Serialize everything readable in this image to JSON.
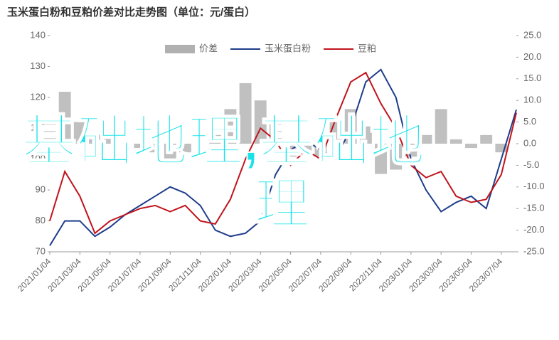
{
  "chart_data": {
    "type": "line",
    "title": "玉米蛋白粉和豆粕价差对比走势图（单位：元/蛋白）",
    "categories": [
      "2021/01/04",
      null,
      "2021/03/04",
      null,
      "2021/05/04",
      null,
      "2021/07/04",
      null,
      "2021/09/04",
      null,
      "2021/11/04",
      null,
      "2022/01/04",
      null,
      "2022/03/04",
      null,
      "2022/05/04",
      null,
      "2022/07/04",
      null,
      "2022/09/04",
      null,
      "2022/11/04",
      null,
      "2023/01/04",
      null,
      "2023/03/04",
      null,
      "2023/05/04",
      null,
      "2023/07/04",
      null
    ],
    "series": [
      {
        "name": "价差",
        "type": "bar",
        "axis": "y2",
        "color": "#b0b0b0",
        "values": [
          5,
          12,
          5,
          2,
          2,
          0,
          -1,
          -2,
          -5,
          -2,
          0,
          2,
          8,
          14,
          10,
          5,
          -3,
          -2,
          -3,
          6,
          8,
          4,
          -7,
          -6,
          -3,
          2,
          8,
          1,
          -1,
          2,
          -2,
          0
        ]
      },
      {
        "name": "玉米蛋白粉",
        "color": "#1f3d8a",
        "values": [
          72,
          80,
          80,
          75,
          78,
          82,
          85,
          88,
          91,
          89,
          85,
          77,
          75,
          76,
          80,
          95,
          103,
          106,
          103,
          100,
          110,
          125,
          129,
          120,
          100,
          90,
          83,
          86,
          88,
          84,
          100,
          116
        ]
      },
      {
        "name": "豆粕",
        "color": "#c0141c",
        "values": [
          80,
          96,
          88,
          76,
          80,
          82,
          84,
          85,
          83,
          85,
          80,
          79,
          87,
          100,
          110,
          106,
          98,
          103,
          100,
          113,
          125,
          128,
          118,
          110,
          98,
          94,
          96,
          88,
          86,
          87,
          95,
          115
        ]
      }
    ],
    "ylim": [
      70,
      140
    ],
    "yticks": [
      70,
      80,
      90,
      100,
      110,
      120,
      130,
      140
    ],
    "y2lim": [
      -25,
      25
    ],
    "y2ticks": [
      {
        "value": -25,
        "label": "-25.0"
      },
      {
        "value": -20,
        "label": "-20.0"
      },
      {
        "value": -15,
        "label": "-15.0"
      },
      {
        "value": -10,
        "label": "-10.0"
      },
      {
        "value": -5,
        "label": "-5.0"
      },
      {
        "value": 0,
        "label": "0.0"
      },
      {
        "value": 5,
        "label": "5.0"
      },
      {
        "value": 10,
        "label": "10.0"
      },
      {
        "value": 15,
        "label": "15.0"
      },
      {
        "value": 20,
        "label": "20.0"
      },
      {
        "value": 25,
        "label": "25.0"
      }
    ],
    "legend": "top",
    "annotations": [
      "基础地理,基础地",
      "理"
    ]
  }
}
